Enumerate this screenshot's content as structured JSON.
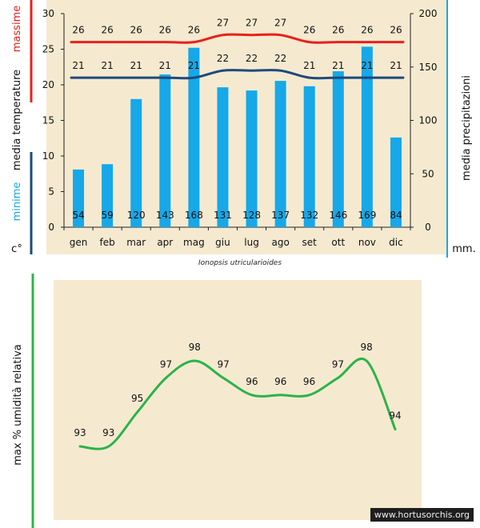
{
  "caption": "Ionopsis utricularioides",
  "watermark": "www.hortusorchis.org",
  "colors": {
    "max": "#e8201c",
    "min": "#1e4a7e",
    "bars": "#16a8e8",
    "humidity": "#2bb34a",
    "plot_bg": "#f5ead0"
  },
  "chart_data": [
    {
      "type": "bar",
      "categories": [
        "gen",
        "feb",
        "mar",
        "apr",
        "mag",
        "giu",
        "lug",
        "ago",
        "set",
        "ott",
        "nov",
        "dic"
      ],
      "series": [
        {
          "name": "massime",
          "axis": "left",
          "kind": "line",
          "values": [
            26,
            26,
            26,
            26,
            26,
            27,
            27,
            27,
            26,
            26,
            26,
            26
          ]
        },
        {
          "name": "minime",
          "axis": "left",
          "kind": "line",
          "values": [
            21,
            21,
            21,
            21,
            21,
            22,
            22,
            22,
            21,
            21,
            21,
            21
          ]
        },
        {
          "name": "media precipitazioni",
          "axis": "right",
          "kind": "bar",
          "values": [
            54,
            59,
            120,
            143,
            168,
            131,
            128,
            137,
            132,
            146,
            169,
            84
          ]
        }
      ],
      "ylabel_left_parts": [
        "massime",
        "media temperature",
        "minime"
      ],
      "ylabel_right": "media precipitazioni",
      "left_unit": "c°",
      "right_unit": "mm.",
      "ylim_left": [
        0,
        30
      ],
      "yticks_left": [
        0,
        5,
        10,
        15,
        20,
        25,
        30
      ],
      "ylim_right": [
        0,
        200
      ],
      "yticks_right": [
        0,
        50,
        100,
        150,
        200
      ]
    },
    {
      "type": "line",
      "categories": [
        "gen",
        "feb",
        "mar",
        "apr",
        "mag",
        "giu",
        "lug",
        "ago",
        "set",
        "ott",
        "nov",
        "dic"
      ],
      "series": [
        {
          "name": "max % umidità relativa",
          "values": [
            93,
            93,
            95,
            97,
            98,
            97,
            96,
            96,
            96,
            97,
            98,
            94
          ]
        }
      ],
      "ylabel": "max % umidità relativa"
    }
  ]
}
